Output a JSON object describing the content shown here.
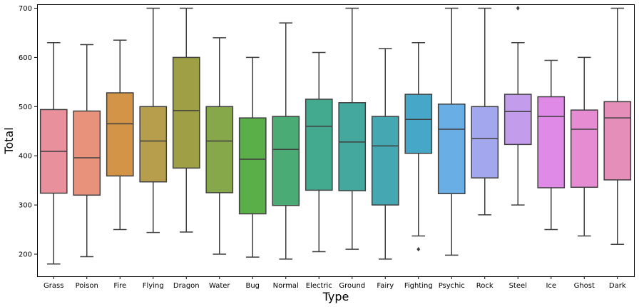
{
  "chart_data": {
    "type": "box",
    "xlabel": "Type",
    "ylabel": "Total",
    "ylim": [
      155,
      708
    ],
    "yticks": [
      200,
      300,
      400,
      500,
      600,
      700
    ],
    "grid": false,
    "legend": "none",
    "categories": [
      "Grass",
      "Poison",
      "Fire",
      "Flying",
      "Dragon",
      "Water",
      "Bug",
      "Normal",
      "Electric",
      "Ground",
      "Fairy",
      "Fighting",
      "Psychic",
      "Rock",
      "Steel",
      "Ice",
      "Ghost",
      "Dark"
    ],
    "boxes": [
      {
        "category": "Grass",
        "whisker_low": 180,
        "q1": 324,
        "median": 409,
        "q3": 494,
        "whisker_high": 630,
        "outliers": [],
        "color": "#e8919c"
      },
      {
        "category": "Poison",
        "whisker_low": 195,
        "q1": 320,
        "median": 396,
        "q3": 491,
        "whisker_high": 626,
        "outliers": [],
        "color": "#e8927c"
      },
      {
        "category": "Fire",
        "whisker_low": 250,
        "q1": 359,
        "median": 465,
        "q3": 528,
        "whisker_high": 635,
        "outliers": [],
        "color": "#d39447"
      },
      {
        "category": "Flying",
        "whisker_low": 244,
        "q1": 347,
        "median": 430,
        "q3": 500,
        "whisker_high": 700,
        "outliers": [],
        "color": "#b69e4d"
      },
      {
        "category": "Dragon",
        "whisker_low": 245,
        "q1": 375,
        "median": 492,
        "q3": 600,
        "whisker_high": 700,
        "outliers": [],
        "color": "#9f9f45"
      },
      {
        "category": "Water",
        "whisker_low": 200,
        "q1": 325,
        "median": 430,
        "q3": 500,
        "whisker_high": 640,
        "outliers": [],
        "color": "#86a74a"
      },
      {
        "category": "Bug",
        "whisker_low": 194,
        "q1": 282,
        "median": 393,
        "q3": 477,
        "whisker_high": 600,
        "outliers": [],
        "color": "#5aaf48"
      },
      {
        "category": "Normal",
        "whisker_low": 190,
        "q1": 299,
        "median": 413,
        "q3": 480,
        "whisker_high": 670,
        "outliers": [],
        "color": "#4aac74"
      },
      {
        "category": "Electric",
        "whisker_low": 205,
        "q1": 330,
        "median": 460,
        "q3": 515,
        "whisker_high": 610,
        "outliers": [],
        "color": "#43aa8f"
      },
      {
        "category": "Ground",
        "whisker_low": 210,
        "q1": 329,
        "median": 428,
        "q3": 508,
        "whisker_high": 700,
        "outliers": [],
        "color": "#45a89e"
      },
      {
        "category": "Fairy",
        "whisker_low": 190,
        "q1": 300,
        "median": 420,
        "q3": 480,
        "whisker_high": 618,
        "outliers": [],
        "color": "#45a7b2"
      },
      {
        "category": "Fighting",
        "whisker_low": 237,
        "q1": 405,
        "median": 474,
        "q3": 525,
        "whisker_high": 630,
        "outliers": [
          210
        ],
        "color": "#47a7c9"
      },
      {
        "category": "Psychic",
        "whisker_low": 198,
        "q1": 323,
        "median": 454,
        "q3": 505,
        "whisker_high": 700,
        "outliers": [],
        "color": "#6aaee6"
      },
      {
        "category": "Rock",
        "whisker_low": 280,
        "q1": 355,
        "median": 435,
        "q3": 500,
        "whisker_high": 700,
        "outliers": [],
        "color": "#a3a8ee"
      },
      {
        "category": "Steel",
        "whisker_low": 300,
        "q1": 423,
        "median": 490,
        "q3": 525,
        "whisker_high": 630,
        "outliers": [
          700
        ],
        "color": "#c39ceb"
      },
      {
        "category": "Ice",
        "whisker_low": 250,
        "q1": 335,
        "median": 480,
        "q3": 520,
        "whisker_high": 594,
        "outliers": [],
        "color": "#e08ae8"
      },
      {
        "category": "Ghost",
        "whisker_low": 237,
        "q1": 336,
        "median": 454,
        "q3": 493,
        "whisker_high": 600,
        "outliers": [],
        "color": "#e68cd2"
      },
      {
        "category": "Dark",
        "whisker_low": 220,
        "q1": 351,
        "median": 477,
        "q3": 510,
        "whisker_high": 700,
        "outliers": [],
        "color": "#e68eba"
      }
    ]
  }
}
